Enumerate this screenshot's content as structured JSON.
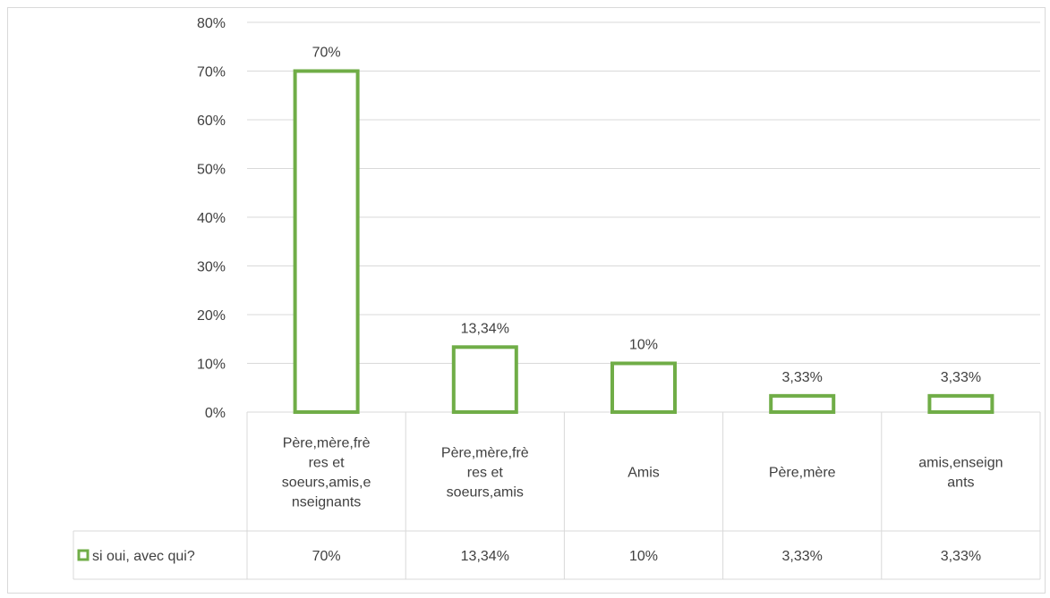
{
  "chart_data": {
    "type": "bar",
    "categories": [
      [
        "Père,mère,frè",
        "res et",
        "soeurs,amis,e",
        "nseignants"
      ],
      [
        "Père,mère,frè",
        "res et",
        "soeurs,amis"
      ],
      [
        "Amis"
      ],
      [
        "Père,mère"
      ],
      [
        "amis,enseign",
        "ants"
      ]
    ],
    "series": [
      {
        "name": "si oui, avec qui?",
        "values": [
          70,
          13.34,
          10,
          3.33,
          3.33
        ],
        "labels": [
          "70%",
          "13,34%",
          "10%",
          "3,33%",
          "3,33%"
        ],
        "color": "#70ad47"
      }
    ],
    "ylim": [
      0,
      80
    ],
    "yticks": [
      "0%",
      "10%",
      "20%",
      "30%",
      "40%",
      "50%",
      "60%",
      "70%",
      "80%"
    ],
    "grid": true,
    "legend": "data-table"
  }
}
